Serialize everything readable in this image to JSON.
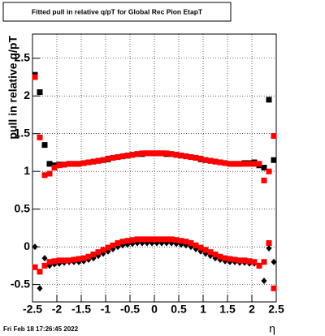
{
  "chart_data": {
    "type": "scatter",
    "title": "Fitted pull in relative q/pT for Global Rec Pion EtapT",
    "y_label": "pull in relative q/pT",
    "x_label": "η",
    "timestamp": "Fri Feb 18 17:26:45 2022",
    "xlim": [
      -2.5,
      2.5
    ],
    "ylim": [
      -0.73,
      2.82
    ],
    "xticks": [
      -2.5,
      -2,
      -1.5,
      -1,
      -0.5,
      0,
      0.5,
      1,
      1.5,
      2,
      2.5
    ],
    "yticks": [
      -0.5,
      0,
      0.5,
      1,
      1.5,
      2,
      2.5
    ],
    "grid": true,
    "x": [
      -2.45,
      -2.35,
      -2.25,
      -2.15,
      -2.05,
      -1.95,
      -1.85,
      -1.75,
      -1.65,
      -1.55,
      -1.45,
      -1.35,
      -1.25,
      -1.15,
      -1.05,
      -0.95,
      -0.85,
      -0.75,
      -0.65,
      -0.55,
      -0.45,
      -0.35,
      -0.25,
      -0.15,
      -0.05,
      0.05,
      0.15,
      0.25,
      0.35,
      0.45,
      0.55,
      0.65,
      0.75,
      0.85,
      0.95,
      1.05,
      1.15,
      1.25,
      1.35,
      1.45,
      1.55,
      1.65,
      1.75,
      1.85,
      1.95,
      2.05,
      2.15,
      2.25,
      2.35,
      2.45
    ],
    "series": [
      {
        "color": "#000000",
        "marker": "square",
        "values": [
          2.28,
          2.05,
          1.35,
          1.1,
          1.08,
          1.09,
          1.09,
          1.1,
          1.1,
          1.1,
          1.11,
          1.12,
          1.13,
          1.14,
          1.15,
          1.16,
          1.18,
          1.19,
          1.2,
          1.21,
          1.22,
          1.23,
          1.23,
          1.24,
          1.24,
          1.24,
          1.24,
          1.23,
          1.23,
          1.22,
          1.21,
          1.2,
          1.19,
          1.18,
          1.16,
          1.15,
          1.14,
          1.13,
          1.12,
          1.11,
          1.1,
          1.1,
          1.1,
          1.11,
          1.11,
          1.12,
          1.08,
          1.05,
          1.95,
          1.15
        ]
      },
      {
        "color": "#000000",
        "marker": "diamond",
        "values": [
          0.0,
          -0.55,
          -0.15,
          -0.25,
          -0.23,
          -0.22,
          -0.21,
          -0.2,
          -0.2,
          -0.2,
          -0.19,
          -0.17,
          -0.15,
          -0.12,
          -0.09,
          -0.06,
          -0.03,
          0.0,
          0.02,
          0.03,
          0.04,
          0.05,
          0.05,
          0.05,
          0.05,
          0.05,
          0.05,
          0.05,
          0.05,
          0.04,
          0.03,
          0.02,
          0.0,
          -0.03,
          -0.06,
          -0.09,
          -0.12,
          -0.15,
          -0.17,
          -0.19,
          -0.2,
          -0.2,
          -0.21,
          -0.21,
          -0.22,
          -0.22,
          -0.25,
          -0.45,
          -0.02,
          -0.2
        ]
      },
      {
        "color": "#ff0000",
        "marker": "square",
        "values": [
          2.25,
          1.45,
          0.95,
          0.97,
          1.05,
          1.08,
          1.09,
          1.1,
          1.1,
          1.1,
          1.11,
          1.12,
          1.13,
          1.14,
          1.15,
          1.17,
          1.18,
          1.19,
          1.2,
          1.21,
          1.22,
          1.23,
          1.24,
          1.24,
          1.24,
          1.24,
          1.24,
          1.24,
          1.23,
          1.22,
          1.21,
          1.2,
          1.19,
          1.18,
          1.17,
          1.15,
          1.14,
          1.13,
          1.12,
          1.11,
          1.1,
          1.1,
          1.1,
          1.1,
          1.1,
          1.1,
          1.1,
          0.88,
          1.0,
          1.47
        ]
      },
      {
        "color": "#ff0000",
        "marker": "square",
        "values": [
          -0.27,
          -0.33,
          -0.25,
          -0.2,
          -0.19,
          -0.18,
          -0.18,
          -0.18,
          -0.17,
          -0.16,
          -0.15,
          -0.13,
          -0.1,
          -0.07,
          -0.04,
          -0.01,
          0.02,
          0.05,
          0.07,
          0.08,
          0.09,
          0.1,
          0.1,
          0.1,
          0.1,
          0.1,
          0.1,
          0.1,
          0.1,
          0.09,
          0.08,
          0.07,
          0.05,
          0.02,
          -0.01,
          -0.04,
          -0.07,
          -0.1,
          -0.13,
          -0.15,
          -0.16,
          -0.17,
          -0.18,
          -0.18,
          -0.19,
          -0.2,
          -0.25,
          -0.2,
          0.05,
          -0.55
        ]
      }
    ]
  }
}
